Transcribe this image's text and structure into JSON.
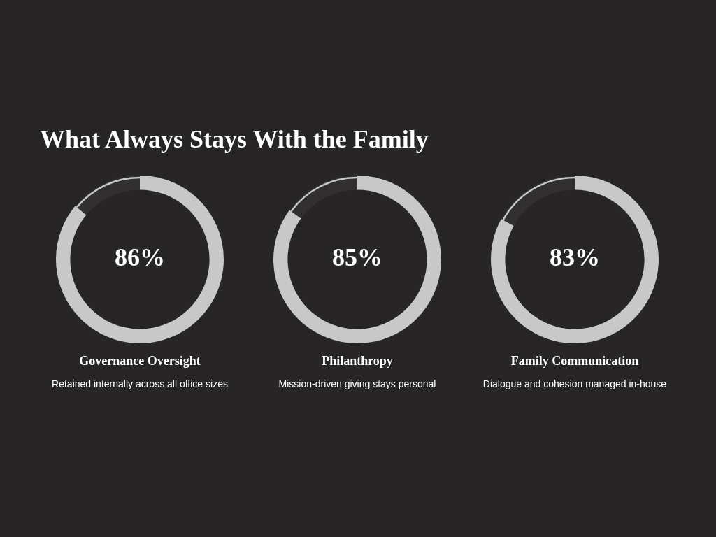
{
  "chart_data": [
    {
      "type": "other",
      "title": "What Always Stays With the Family"
    },
    {
      "type": "donut",
      "title": "Governance Oversight",
      "subtitle": "Retained internally across all office sizes",
      "categories": [
        null,
        null
      ],
      "values": [
        86,
        14
      ],
      "colors": [
        "#c8c8c8",
        "#c8c8c8"
      ],
      "value_labels": [
        "86%",
        null
      ]
    },
    {
      "type": "donut",
      "title": "Philanthropy",
      "subtitle": "Mission-driven giving stays personal",
      "categories": [
        null,
        null
      ],
      "values": [
        85,
        15
      ],
      "colors": [
        "#c8c8c8",
        "#c8c8c8"
      ],
      "value_labels": [
        "85%",
        null
      ]
    },
    {
      "type": "donut",
      "title": "Family Communication",
      "subtitle": "Dialogue and cohesion managed in-house",
      "categories": [
        null,
        null
      ],
      "values": [
        83,
        17
      ],
      "colors": [
        "#c8c8c8",
        "#c8c8c8"
      ],
      "value_labels": [
        "83%",
        null
      ]
    }
  ]
}
